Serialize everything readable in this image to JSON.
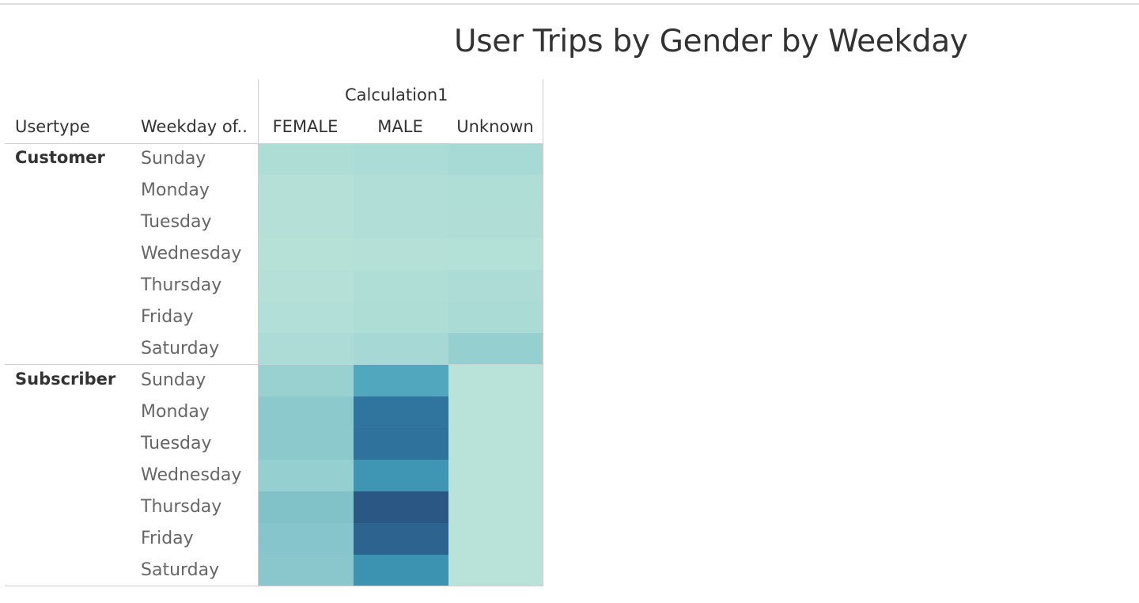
{
  "title": "User Trips by Gender by Weekday",
  "headers": {
    "column_group": "Calculation1",
    "row_dim1": "Usertype",
    "row_dim2": "Weekday of.."
  },
  "chart_data": {
    "type": "heatmap",
    "title": "User Trips by Gender by Weekday",
    "columns": [
      "FEMALE",
      "MALE",
      "Unknown"
    ],
    "rows": [
      {
        "usertype": "Customer",
        "weekday": "Sunday",
        "values": [
          18,
          22,
          28
        ]
      },
      {
        "usertype": "Customer",
        "weekday": "Monday",
        "values": [
          10,
          14,
          16
        ]
      },
      {
        "usertype": "Customer",
        "weekday": "Tuesday",
        "values": [
          9,
          13,
          15
        ]
      },
      {
        "usertype": "Customer",
        "weekday": "Wednesday",
        "values": [
          8,
          10,
          11
        ]
      },
      {
        "usertype": "Customer",
        "weekday": "Thursday",
        "values": [
          10,
          16,
          20
        ]
      },
      {
        "usertype": "Customer",
        "weekday": "Friday",
        "values": [
          12,
          18,
          24
        ]
      },
      {
        "usertype": "Customer",
        "weekday": "Saturday",
        "values": [
          20,
          30,
          42
        ]
      },
      {
        "usertype": "Subscriber",
        "weekday": "Sunday",
        "values": [
          40,
          78,
          2
        ]
      },
      {
        "usertype": "Subscriber",
        "weekday": "Monday",
        "values": [
          48,
          108,
          2
        ]
      },
      {
        "usertype": "Subscriber",
        "weekday": "Tuesday",
        "values": [
          48,
          110,
          2
        ]
      },
      {
        "usertype": "Subscriber",
        "weekday": "Wednesday",
        "values": [
          42,
          90,
          2
        ]
      },
      {
        "usertype": "Subscriber",
        "weekday": "Thursday",
        "values": [
          55,
          130,
          2
        ]
      },
      {
        "usertype": "Subscriber",
        "weekday": "Friday",
        "values": [
          52,
          120,
          2
        ]
      },
      {
        "usertype": "Subscriber",
        "weekday": "Saturday",
        "values": [
          50,
          92,
          2
        ]
      }
    ],
    "color_range": [
      "#b9e3d8",
      "#2b5784"
    ]
  }
}
